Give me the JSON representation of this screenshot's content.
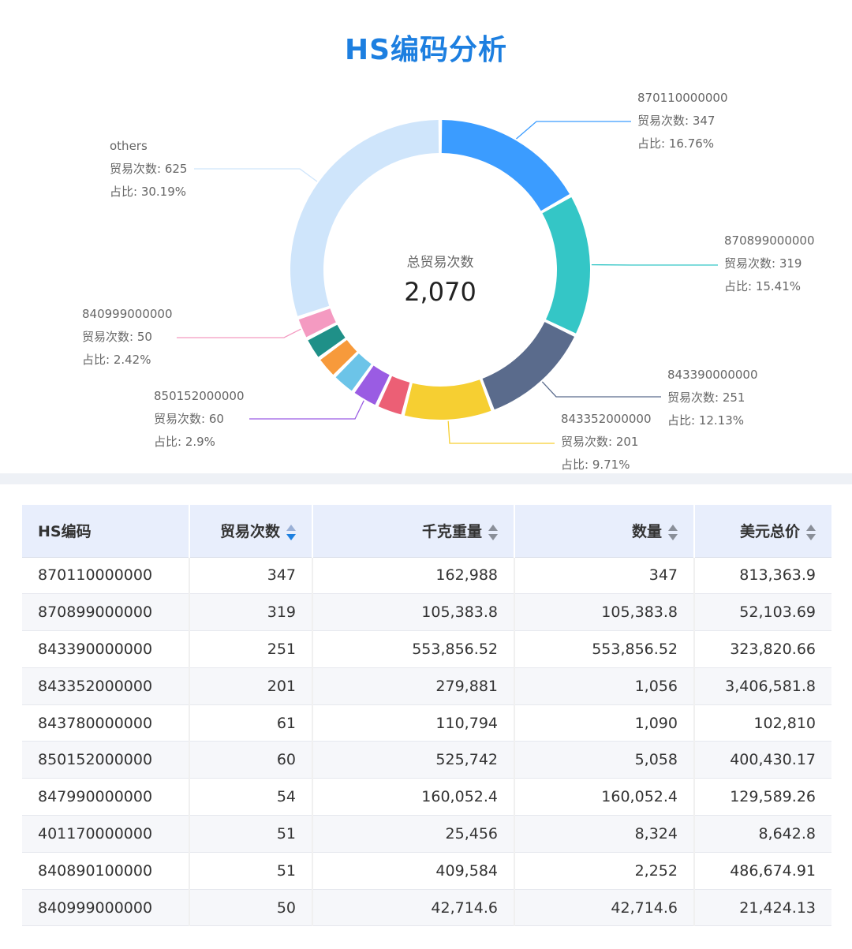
{
  "title": "HS编码分析",
  "colors": {
    "title": "#1d7fe0",
    "slices": [
      "#3b9cff",
      "#34c6c6",
      "#5a6b8c",
      "#f6cf32",
      "#ec5f75",
      "#9a5ce3",
      "#6cc4e8",
      "#f79a3b",
      "#1f9088",
      "#f49ac1",
      "#cfe5fb"
    ]
  },
  "chart_data": {
    "type": "pie",
    "center_label": "总贸易次数",
    "center_value": "2,070",
    "total": 2070,
    "metric_label": "贸易次数",
    "share_label": "占比",
    "slices": [
      {
        "code": "870110000000",
        "value": 347,
        "share": "16.76%",
        "labeled": true
      },
      {
        "code": "870899000000",
        "value": 319,
        "share": "15.41%",
        "labeled": true
      },
      {
        "code": "843390000000",
        "value": 251,
        "share": "12.13%",
        "labeled": true
      },
      {
        "code": "843352000000",
        "value": 201,
        "share": "9.71%",
        "labeled": true
      },
      {
        "code": "843780000000",
        "value": 61,
        "share": "2.95%",
        "labeled": false
      },
      {
        "code": "850152000000",
        "value": 60,
        "share": "2.9%",
        "labeled": true
      },
      {
        "code": "847990000000",
        "value": 54,
        "share": "2.61%",
        "labeled": false
      },
      {
        "code": "401170000000",
        "value": 51,
        "share": "2.46%",
        "labeled": false
      },
      {
        "code": "840890100000",
        "value": 51,
        "share": "2.46%",
        "labeled": false
      },
      {
        "code": "840999000000",
        "value": 50,
        "share": "2.42%",
        "labeled": true
      },
      {
        "code": "others",
        "value": 625,
        "share": "30.19%",
        "labeled": true
      }
    ]
  },
  "table": {
    "headers": [
      "HS编码",
      "贸易次数",
      "千克重量",
      "数量",
      "美元总价"
    ],
    "sortable": [
      false,
      true,
      true,
      true,
      true
    ],
    "active_sort": 1,
    "rows": [
      [
        "870110000000",
        "347",
        "162,988",
        "347",
        "813,363.9"
      ],
      [
        "870899000000",
        "319",
        "105,383.8",
        "105,383.8",
        "52,103.69"
      ],
      [
        "843390000000",
        "251",
        "553,856.52",
        "553,856.52",
        "323,820.66"
      ],
      [
        "843352000000",
        "201",
        "279,881",
        "1,056",
        "3,406,581.8"
      ],
      [
        "843780000000",
        "61",
        "110,794",
        "1,090",
        "102,810"
      ],
      [
        "850152000000",
        "60",
        "525,742",
        "5,058",
        "400,430.17"
      ],
      [
        "847990000000",
        "54",
        "160,052.4",
        "160,052.4",
        "129,589.26"
      ],
      [
        "401170000000",
        "51",
        "25,456",
        "8,324",
        "8,642.8"
      ],
      [
        "840890100000",
        "51",
        "409,584",
        "2,252",
        "486,674.91"
      ],
      [
        "840999000000",
        "50",
        "42,714.6",
        "42,714.6",
        "21,424.13"
      ]
    ]
  }
}
